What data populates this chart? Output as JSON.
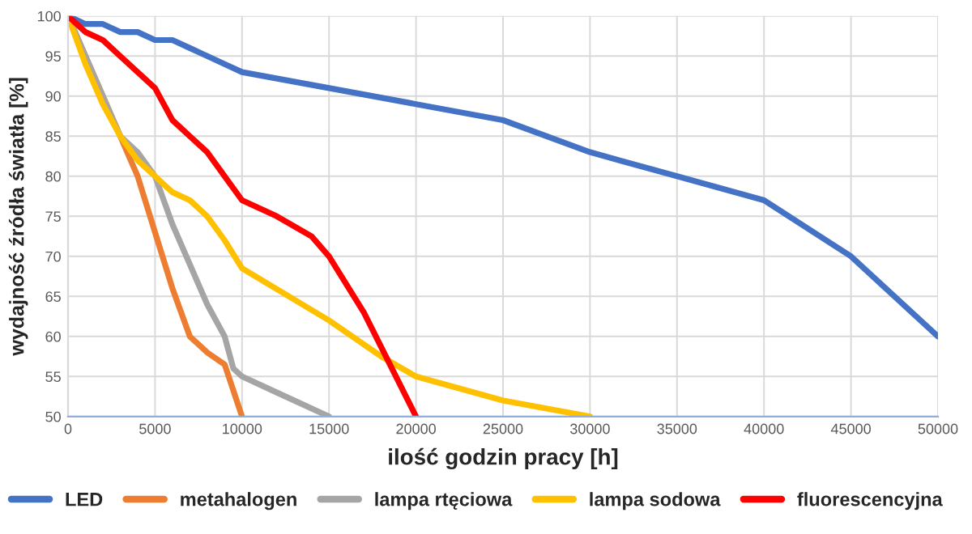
{
  "chart_data": {
    "type": "line",
    "xlabel": "ilość godzin pracy [h]",
    "ylabel": "wydajność źródła światła [%]",
    "xlim": [
      0,
      50000
    ],
    "xticks": [
      0,
      5000,
      10000,
      15000,
      20000,
      25000,
      30000,
      35000,
      40000,
      45000,
      50000
    ],
    "ylim": [
      50,
      100
    ],
    "yticks": [
      50,
      55,
      60,
      65,
      70,
      75,
      80,
      85,
      90,
      95,
      100
    ],
    "grid": true,
    "legend": "bottom",
    "marker": "none",
    "line_style": "solid",
    "series": [
      {
        "name": "LED",
        "color": "#4472c4",
        "x": [
          0,
          1000,
          2000,
          3000,
          4000,
          5000,
          6000,
          7000,
          8000,
          9000,
          10000,
          15000,
          20000,
          25000,
          30000,
          35000,
          40000,
          45000,
          50000
        ],
        "values": [
          100,
          99,
          99,
          98,
          98,
          97,
          97,
          96,
          95,
          94,
          93,
          91,
          89,
          87,
          83,
          80,
          77,
          70,
          60
        ]
      },
      {
        "name": "metahalogen",
        "color": "#ed7d31",
        "x": [
          0,
          1000,
          2000,
          3000,
          4000,
          5000,
          6000,
          7000,
          8000,
          9000,
          10000
        ],
        "values": [
          100,
          95,
          90,
          85,
          80,
          73,
          66,
          60,
          58,
          56.5,
          50
        ]
      },
      {
        "name": "lampa rtęciowa",
        "color": "#a5a5a5",
        "x": [
          0,
          3000,
          4000,
          5000,
          6000,
          7000,
          8000,
          9000,
          9500,
          10000,
          12000,
          15000
        ],
        "values": [
          100,
          85,
          83,
          80,
          74,
          69,
          64,
          60,
          56,
          55,
          53,
          50
        ]
      },
      {
        "name": "lampa sodowa",
        "color": "#ffc000",
        "x": [
          0,
          1000,
          2000,
          3000,
          4000,
          5000,
          6000,
          7000,
          8000,
          9000,
          10000,
          15000,
          18000,
          20000,
          25000,
          30000
        ],
        "values": [
          100,
          94,
          89,
          85,
          82,
          80,
          78,
          77,
          75,
          72,
          68.5,
          62,
          57.5,
          55,
          52,
          50
        ]
      },
      {
        "name": "fluorescencyjna",
        "color": "#ff0000",
        "x": [
          0,
          1000,
          2000,
          3000,
          4000,
          5000,
          6000,
          7000,
          8000,
          9000,
          10000,
          12000,
          14000,
          15000,
          17000,
          20000
        ],
        "values": [
          100,
          98,
          97,
          95,
          93,
          91,
          87,
          85,
          83,
          80,
          77,
          75,
          72.5,
          70,
          63,
          50
        ]
      }
    ]
  }
}
